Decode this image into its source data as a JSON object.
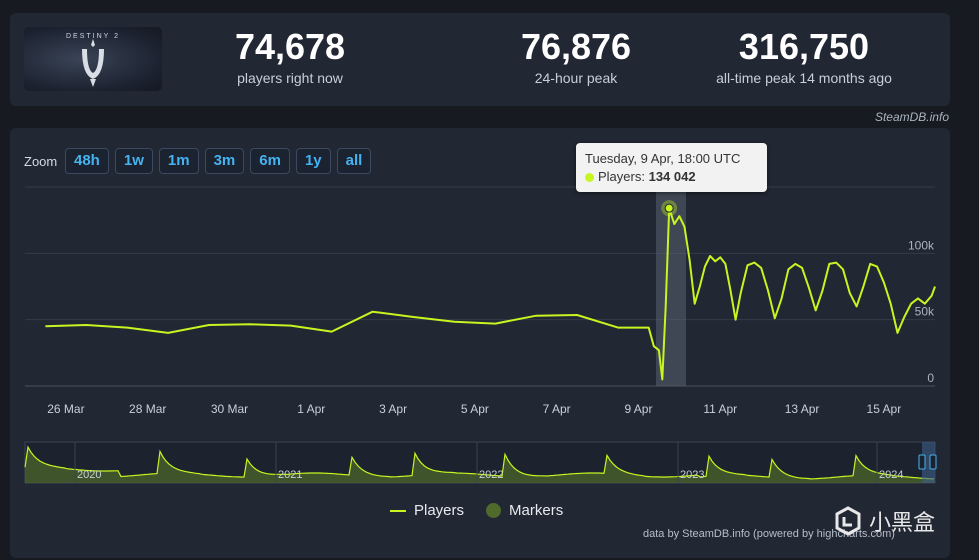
{
  "stats": [
    {
      "value": "74,678",
      "label": "players right now"
    },
    {
      "value": "76,876",
      "label": "24-hour peak"
    },
    {
      "value": "316,750",
      "label": "all-time peak 14 months ago"
    }
  ],
  "logo": {
    "text": "DESTINY 2"
  },
  "source_credit": "SteamDB.info",
  "zoom": {
    "label": "Zoom",
    "buttons": [
      "48h",
      "1w",
      "1m",
      "3m",
      "6m",
      "1y",
      "all"
    ]
  },
  "tooltip": {
    "date": "Tuesday, 9 Apr, 18:00 UTC",
    "series": "Players:",
    "value": "134 042"
  },
  "legend": {
    "players": "Players",
    "markers": "Markers"
  },
  "footer_credit": "data by SteamDB.info (powered by highcharts.com)",
  "watermark": "小黑盒",
  "colors": {
    "series": "#c6f520",
    "marker": "#4f6a2a",
    "accent": "#45b3f0"
  },
  "chart_data": {
    "type": "line",
    "x_unit": "date",
    "x_ticks": [
      "26 Mar",
      "28 Mar",
      "30 Mar",
      "1 Apr",
      "3 Apr",
      "5 Apr",
      "7 Apr",
      "9 Apr",
      "11 Apr",
      "13 Apr",
      "15 Apr"
    ],
    "y_ticks": [
      "0",
      "50k",
      "100k"
    ],
    "ylim": [
      0,
      150000
    ],
    "grid": true,
    "legend_position": "bottom-center",
    "highlighted_point": {
      "x": "2024-04-09 18:00",
      "y": 134042
    },
    "series": [
      {
        "name": "Players",
        "points": [
          [
            "2024-03-25 12:00",
            45000
          ],
          [
            "2024-03-26 12:00",
            46000
          ],
          [
            "2024-03-27 12:00",
            44000
          ],
          [
            "2024-03-28 12:00",
            40000
          ],
          [
            "2024-03-29 12:00",
            46000
          ],
          [
            "2024-03-30 12:00",
            46500
          ],
          [
            "2024-03-31 12:00",
            45500
          ],
          [
            "2024-04-01 12:00",
            41000
          ],
          [
            "2024-04-02 12:00",
            56000
          ],
          [
            "2024-04-03 12:00",
            52000
          ],
          [
            "2024-04-04 12:00",
            48500
          ],
          [
            "2024-04-05 12:00",
            47000
          ],
          [
            "2024-04-06 12:00",
            53000
          ],
          [
            "2024-04-07 12:00",
            53500
          ],
          [
            "2024-04-08 12:00",
            44000
          ],
          [
            "2024-04-09 00:00",
            44000
          ],
          [
            "2024-04-09 06:00",
            44000
          ],
          [
            "2024-04-09 09:00",
            30000
          ],
          [
            "2024-04-09 12:00",
            27000
          ],
          [
            "2024-04-09 14:00",
            5000
          ],
          [
            "2024-04-09 16:00",
            60000
          ],
          [
            "2024-04-09 18:00",
            134042
          ],
          [
            "2024-04-09 21:00",
            122000
          ],
          [
            "2024-04-10 00:00",
            128000
          ],
          [
            "2024-04-10 03:00",
            120000
          ],
          [
            "2024-04-10 06:00",
            95000
          ],
          [
            "2024-04-10 09:00",
            62000
          ],
          [
            "2024-04-10 12:00",
            75000
          ],
          [
            "2024-04-10 15:00",
            90000
          ],
          [
            "2024-04-10 18:00",
            98000
          ],
          [
            "2024-04-10 21:00",
            94000
          ],
          [
            "2024-04-11 00:00",
            97000
          ],
          [
            "2024-04-11 03:00",
            92000
          ],
          [
            "2024-04-11 06:00",
            72000
          ],
          [
            "2024-04-11 09:00",
            50000
          ],
          [
            "2024-04-11 12:00",
            70000
          ],
          [
            "2024-04-11 16:00",
            91000
          ],
          [
            "2024-04-11 20:00",
            93000
          ],
          [
            "2024-04-12 00:00",
            89000
          ],
          [
            "2024-04-12 04:00",
            72000
          ],
          [
            "2024-04-12 08:00",
            51000
          ],
          [
            "2024-04-12 12:00",
            66000
          ],
          [
            "2024-04-12 16:00",
            88000
          ],
          [
            "2024-04-12 20:00",
            92000
          ],
          [
            "2024-04-13 00:00",
            89000
          ],
          [
            "2024-04-13 04:00",
            74000
          ],
          [
            "2024-04-13 08:00",
            57000
          ],
          [
            "2024-04-13 12:00",
            72000
          ],
          [
            "2024-04-13 16:00",
            92000
          ],
          [
            "2024-04-13 20:00",
            93000
          ],
          [
            "2024-04-14 00:00",
            88000
          ],
          [
            "2024-04-14 04:00",
            70000
          ],
          [
            "2024-04-14 08:00",
            60000
          ],
          [
            "2024-04-14 12:00",
            75000
          ],
          [
            "2024-04-14 16:00",
            92000
          ],
          [
            "2024-04-14 20:00",
            90000
          ],
          [
            "2024-04-15 00:00",
            78000
          ],
          [
            "2024-04-15 04:00",
            62000
          ],
          [
            "2024-04-15 08:00",
            40000
          ],
          [
            "2024-04-15 12:00",
            52000
          ],
          [
            "2024-04-15 16:00",
            62000
          ],
          [
            "2024-04-15 20:00",
            66000
          ],
          [
            "2024-04-16 00:00",
            62000
          ],
          [
            "2024-04-16 04:00",
            68000
          ],
          [
            "2024-04-16 06:00",
            75000
          ]
        ]
      }
    ],
    "navigator_years": [
      "2020",
      "2021",
      "2022",
      "2023",
      "2024"
    ]
  }
}
